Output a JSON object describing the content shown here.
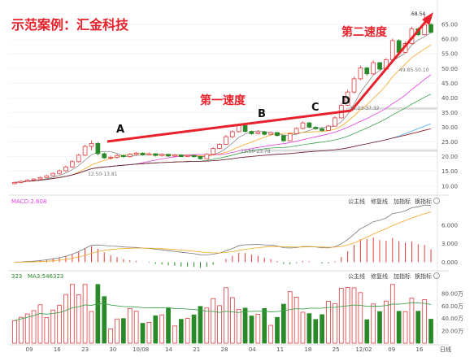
{
  "title": "示范案例：汇金科技",
  "annotations": {
    "first_speed": "第一速度",
    "second_speed": "第二速度",
    "points": [
      "A",
      "B",
      "C",
      "D"
    ],
    "high_label": "68.54",
    "mid_labels": [
      "49.85-50.10",
      "35.23-37.32",
      "23.50-23.78",
      "12.50-13.81"
    ]
  },
  "colors": {
    "up": "#e0393e",
    "down": "#2a8a2a",
    "ma5": "#888888",
    "ma10": "#f5a623",
    "ma20": "#e040e0",
    "ma30": "#3fa34d",
    "ma60": "#3fa9f5",
    "ma120": "#8b1a1a",
    "red_text": "#e8212a"
  },
  "macd_panel": {
    "label": "MACD:2.608",
    "buttons": [
      "公主线",
      "修复线",
      "加指标",
      "换指标"
    ]
  },
  "volume_panel": {
    "label_a": "323",
    "label_b": "MA3:546323",
    "buttons": [
      "公主线",
      "修复线",
      "加指标",
      "换指标"
    ]
  },
  "bottom_right_label": "日线",
  "chart_data": {
    "type": "candlestick",
    "price_axis": {
      "ticks": [
        10,
        15,
        20,
        25,
        30,
        35,
        40,
        45,
        50,
        55,
        60,
        65
      ],
      "range": [
        8,
        70
      ]
    },
    "macd_axis": {
      "ticks": [
        "0.000",
        "3.000",
        "6.000"
      ],
      "range": [
        -1,
        9
      ]
    },
    "volume_axis": {
      "ticks": [
        "20.00万",
        "40.00万",
        "60.00万",
        "80.00万"
      ],
      "range": [
        0,
        100
      ]
    },
    "x_ticks": [
      "09",
      "16",
      "23",
      "30",
      "10/08",
      "14",
      "21",
      "28",
      "04",
      "11",
      "18",
      "25",
      "12/02",
      "09",
      "16"
    ],
    "candles": [
      [
        10.8,
        11.2,
        10.6,
        11.5
      ],
      [
        11.2,
        11.6,
        11.0,
        11.9
      ],
      [
        11.6,
        12.0,
        11.4,
        12.3
      ],
      [
        12.0,
        12.4,
        11.8,
        12.6
      ],
      [
        12.4,
        12.9,
        12.2,
        13.2
      ],
      [
        12.9,
        13.5,
        12.7,
        13.8
      ],
      [
        13.5,
        14.3,
        13.3,
        14.6
      ],
      [
        14.3,
        15.2,
        14.0,
        15.6
      ],
      [
        15.2,
        16.5,
        15.0,
        17.0
      ],
      [
        16.5,
        18.3,
        16.2,
        18.8
      ],
      [
        18.3,
        20.5,
        18.0,
        21.0
      ],
      [
        20.5,
        23.5,
        20.2,
        24.0
      ],
      [
        23.5,
        24.5,
        22.2,
        25.5
      ],
      [
        24.5,
        21.0,
        20.5,
        25.0
      ],
      [
        21.0,
        19.6,
        19.2,
        21.5
      ],
      [
        19.6,
        19.8,
        19.0,
        20.4
      ],
      [
        19.8,
        20.4,
        19.4,
        20.9
      ],
      [
        20.4,
        20.0,
        19.6,
        20.8
      ],
      [
        20.0,
        20.8,
        19.7,
        21.2
      ],
      [
        20.8,
        21.2,
        20.4,
        21.6
      ],
      [
        21.2,
        20.6,
        20.3,
        21.5
      ],
      [
        20.6,
        21.0,
        20.4,
        21.4
      ],
      [
        21.0,
        20.4,
        20.0,
        21.2
      ],
      [
        20.4,
        20.8,
        20.0,
        21.1
      ],
      [
        20.8,
        20.2,
        19.9,
        21.0
      ],
      [
        20.2,
        20.6,
        20.0,
        20.9
      ],
      [
        20.6,
        20.0,
        19.8,
        20.8
      ],
      [
        20.0,
        20.4,
        19.8,
        20.7
      ],
      [
        20.4,
        20.0,
        19.7,
        20.6
      ],
      [
        20.0,
        19.3,
        19.0,
        20.2
      ],
      [
        19.3,
        20.8,
        19.2,
        21.2
      ],
      [
        20.8,
        22.8,
        20.6,
        23.2
      ],
      [
        22.8,
        24.2,
        22.5,
        24.6
      ],
      [
        24.2,
        26.8,
        24.0,
        27.4
      ],
      [
        26.8,
        28.5,
        26.3,
        29.0
      ],
      [
        28.5,
        30.6,
        28.2,
        31.2
      ],
      [
        30.6,
        28.6,
        28.2,
        30.9
      ],
      [
        28.6,
        27.8,
        27.4,
        28.9
      ],
      [
        27.8,
        28.4,
        27.6,
        28.9
      ],
      [
        28.4,
        27.6,
        27.2,
        28.7
      ],
      [
        27.6,
        28.2,
        27.3,
        28.6
      ],
      [
        28.2,
        27.2,
        26.8,
        28.4
      ],
      [
        27.2,
        25.4,
        25.0,
        27.4
      ],
      [
        25.4,
        27.8,
        25.2,
        28.2
      ],
      [
        27.8,
        29.6,
        27.5,
        30.0
      ],
      [
        29.6,
        31.5,
        29.3,
        32.0
      ],
      [
        31.5,
        30.0,
        29.7,
        31.8
      ],
      [
        30.0,
        29.5,
        29.2,
        30.4
      ],
      [
        29.5,
        28.9,
        28.5,
        29.8
      ],
      [
        28.9,
        30.4,
        28.7,
        30.8
      ],
      [
        30.4,
        33.2,
        30.2,
        33.8
      ],
      [
        33.2,
        37.5,
        33.0,
        38.2
      ],
      [
        37.5,
        42.0,
        37.2,
        42.8
      ],
      [
        42.0,
        46.5,
        41.5,
        47.2
      ],
      [
        46.5,
        50.2,
        46.0,
        51.0
      ],
      [
        50.2,
        48.2,
        47.5,
        50.6
      ],
      [
        48.2,
        52.0,
        47.8,
        52.8
      ],
      [
        52.0,
        49.8,
        49.4,
        52.2
      ],
      [
        49.8,
        53.0,
        49.5,
        53.6
      ],
      [
        53.0,
        59.5,
        52.8,
        60.2
      ],
      [
        59.5,
        55.5,
        55.0,
        60.0
      ],
      [
        55.5,
        58.5,
        55.2,
        59.2
      ],
      [
        58.5,
        63.5,
        58.2,
        64.2
      ],
      [
        63.5,
        61.5,
        61.0,
        64.0
      ],
      [
        61.5,
        65.0,
        61.2,
        68.54
      ],
      [
        65.0,
        62.3,
        62.0,
        65.5
      ]
    ]
  }
}
